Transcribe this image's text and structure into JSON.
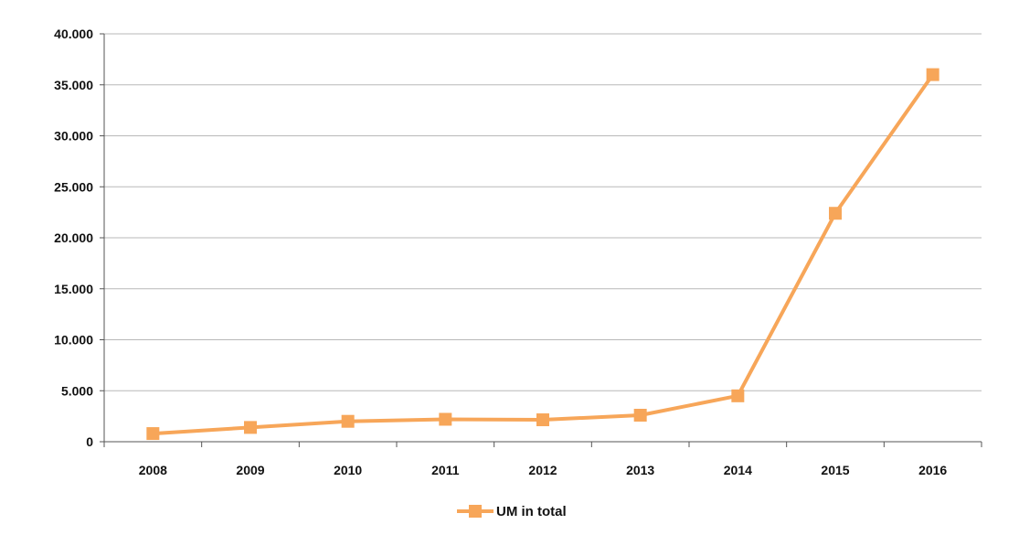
{
  "chart_data": {
    "type": "line",
    "title": "",
    "xlabel": "",
    "ylabel": "",
    "categories": [
      "2008",
      "2009",
      "2010",
      "2011",
      "2012",
      "2013",
      "2014",
      "2015",
      "2016"
    ],
    "y_ticks": [
      "0",
      "5.000",
      "10.000",
      "15.000",
      "20.000",
      "25.000",
      "30.000",
      "35.000",
      "40.000"
    ],
    "ylim": [
      0,
      40000
    ],
    "grid": true,
    "legend_position": "bottom",
    "series": [
      {
        "name": "UM in total",
        "color": "#F7A659",
        "values": [
          800,
          1400,
          2000,
          2200,
          2150,
          2600,
          4500,
          22400,
          36000
        ]
      }
    ]
  }
}
